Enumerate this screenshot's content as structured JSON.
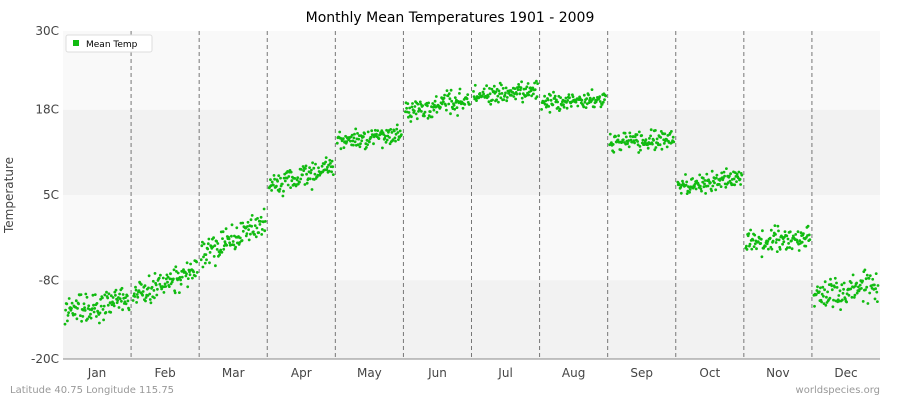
{
  "chart_data": {
    "type": "scatter",
    "title": "Monthly Mean Temperatures 1901 - 2009",
    "xlabel": "",
    "ylabel": "Temperature",
    "ylim": [
      -20,
      30
    ],
    "y_ticks": [
      {
        "value": 30,
        "label": "30C"
      },
      {
        "value": 18,
        "label": "18C"
      },
      {
        "value": 5,
        "label": "5C"
      },
      {
        "value": -8,
        "label": "-8C"
      },
      {
        "value": -20,
        "label": "-20C"
      }
    ],
    "categories": [
      "Jan",
      "Feb",
      "Mar",
      "Apr",
      "May",
      "Jun",
      "Jul",
      "Aug",
      "Sep",
      "Oct",
      "Nov",
      "Dec"
    ],
    "years": [
      1901,
      2009
    ],
    "legend": {
      "position": "top-left",
      "entries": [
        "Mean Temp"
      ]
    },
    "grid": true,
    "series": [
      {
        "name": "Mean Temp",
        "color": "#11bb11",
        "monthly_range": [
          {
            "month": "Jan",
            "start": -12.5,
            "end": -11.0,
            "spread": 1.6
          },
          {
            "month": "Feb",
            "start": -10.5,
            "end": -6.5,
            "spread": 1.5
          },
          {
            "month": "Mar",
            "start": -4.0,
            "end": 1.0,
            "spread": 1.7
          },
          {
            "month": "Apr",
            "start": 6.0,
            "end": 9.5,
            "spread": 1.4
          },
          {
            "month": "May",
            "start": 13.0,
            "end": 14.5,
            "spread": 1.2
          },
          {
            "month": "Jun",
            "start": 17.5,
            "end": 19.5,
            "spread": 1.2
          },
          {
            "month": "Jul",
            "start": 20.0,
            "end": 21.0,
            "spread": 1.0
          },
          {
            "month": "Aug",
            "start": 19.0,
            "end": 19.5,
            "spread": 1.0
          },
          {
            "month": "Sep",
            "start": 13.0,
            "end": 13.5,
            "spread": 1.2
          },
          {
            "month": "Oct",
            "start": 6.0,
            "end": 7.5,
            "spread": 1.2
          },
          {
            "month": "Nov",
            "start": -2.0,
            "end": -1.5,
            "spread": 1.5
          },
          {
            "month": "Dec",
            "start": -10.5,
            "end": -8.5,
            "spread": 1.8
          }
        ]
      }
    ]
  },
  "colors": {
    "band_light": "#f9f9f9",
    "band_dark": "#f2f2f2",
    "point": "#11bb11",
    "divider": "#777777"
  },
  "footer": {
    "left": "Latitude 40.75 Longitude 115.75",
    "right": "worldspecies.org"
  }
}
